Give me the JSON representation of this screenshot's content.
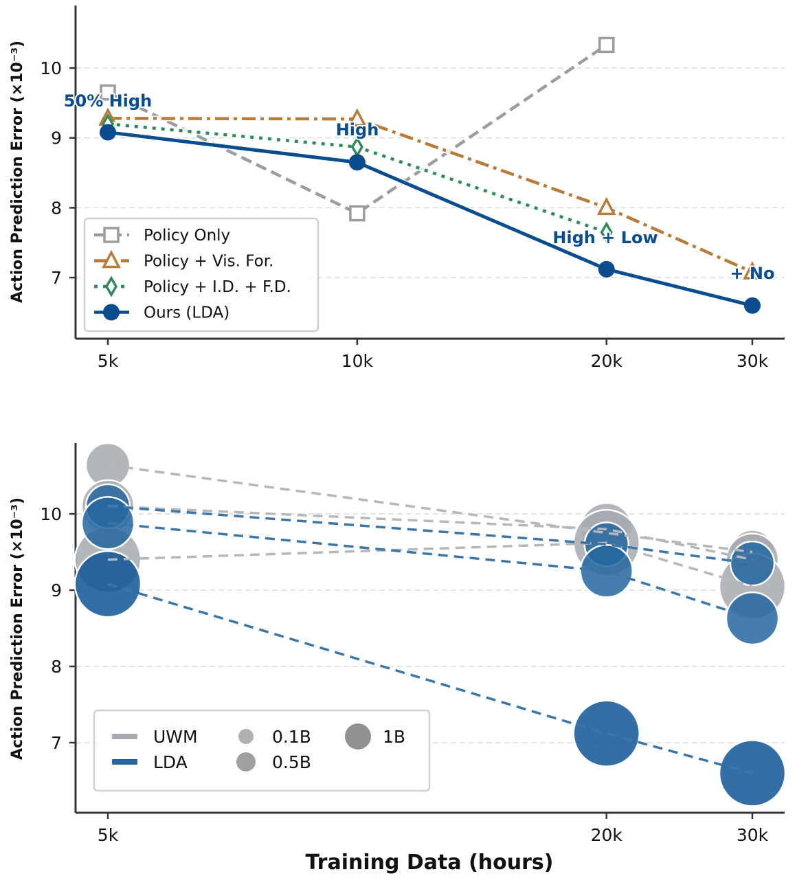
{
  "chart_data": [
    {
      "type": "line",
      "xscale": "log",
      "x": [
        "5k",
        "10k",
        "20k",
        "30k"
      ],
      "x_values": [
        5000,
        10000,
        20000,
        30000
      ],
      "ylabel": "Action Prediction Error (×10⁻³)",
      "yticks": [
        7,
        8,
        9,
        10
      ],
      "ylim": [
        6.1,
        10.9
      ],
      "grid": "y dashed",
      "legend_position": "bottom-left",
      "series": [
        {
          "name": "Policy Only",
          "color": "#9a9ca1",
          "marker": "square-open",
          "dash": "dashed",
          "values": [
            9.65,
            7.92,
            10.33,
            null
          ]
        },
        {
          "name": "Policy + Vis. For.",
          "color": "#b87c3a",
          "marker": "triangle-open",
          "dash": "dashdot",
          "values": [
            9.28,
            9.27,
            8.0,
            7.08
          ]
        },
        {
          "name": "Policy + I.D. + F.D.",
          "color": "#2e8b57",
          "marker": "diamond-open",
          "dash": "dotted",
          "values": [
            9.2,
            8.87,
            7.65,
            null
          ]
        },
        {
          "name": "Ours (LDA)",
          "color": "#0a4d8f",
          "marker": "circle",
          "dash": "solid",
          "values": [
            9.08,
            8.65,
            7.12,
            6.6
          ]
        }
      ],
      "annotations": [
        "50% High",
        "High",
        "High + Low",
        "+ No"
      ]
    },
    {
      "type": "scatter",
      "xscale": "log",
      "x": [
        "5k",
        "20k",
        "30k"
      ],
      "x_values": [
        5000,
        20000,
        30000
      ],
      "xlabel": "Training Data (hours)",
      "ylabel": "Action Prediction Error (×10⁻³)",
      "yticks": [
        7,
        8,
        9,
        10
      ],
      "ylim": [
        6.1,
        10.9
      ],
      "grid": "y dashed",
      "legend_position": "bottom-left",
      "legend_sizes": [
        "0.1B",
        "0.5B",
        "1B"
      ],
      "series": [
        {
          "name": "UWM",
          "color": "#a6aab0",
          "size": "0.1B",
          "values": [
            10.64,
            9.75,
            9.5
          ]
        },
        {
          "name": "UWM",
          "color": "#a6aab0",
          "size": "0.5B",
          "values": [
            10.1,
            9.8,
            9.4
          ]
        },
        {
          "name": "UWM",
          "color": "#a6aab0",
          "size": "1B",
          "values": [
            9.4,
            9.62,
            9.05
          ]
        },
        {
          "name": "LDA",
          "color": "#2566a0",
          "size": "0.1B",
          "values": [
            10.1,
            9.6,
            9.35
          ]
        },
        {
          "name": "LDA",
          "color": "#2566a0",
          "size": "0.5B",
          "values": [
            9.88,
            9.25,
            8.63
          ]
        },
        {
          "name": "LDA",
          "color": "#0f5597",
          "size": "1B",
          "values": [
            9.08,
            7.12,
            6.6
          ]
        }
      ]
    }
  ]
}
